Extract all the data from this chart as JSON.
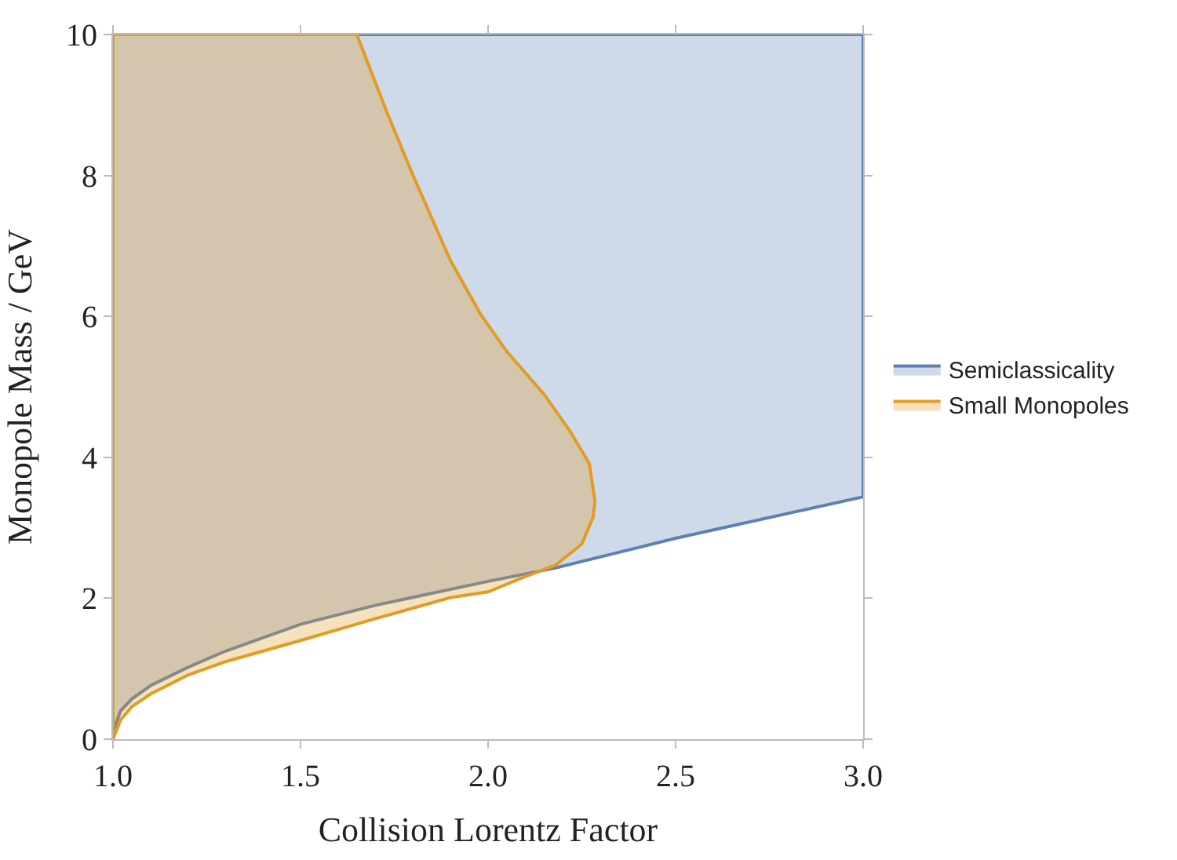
{
  "chart_data": {
    "type": "area",
    "xlabel": "Collision Lorentz Factor",
    "ylabel": "Monopole Mass / GeV",
    "xlim": [
      1.0,
      3.0
    ],
    "ylim": [
      0,
      10
    ],
    "xticks": [
      {
        "value": 1.0,
        "label": "1.0"
      },
      1.5,
      {
        "value": 2.0,
        "label": "2.0"
      },
      2.5,
      {
        "value": 3.0,
        "label": "3.0"
      }
    ],
    "yticks": [
      0,
      2,
      4,
      6,
      8,
      10
    ],
    "grid": false,
    "legend": "right",
    "series": [
      {
        "name": "Semiclassicality",
        "color": "#5e81b5",
        "x": [
          1.0,
          1.02,
          1.05,
          1.1,
          1.2,
          1.3,
          1.5,
          1.7,
          2.0,
          2.18,
          2.5,
          3.0,
          3.0,
          1.0,
          1.0
        ],
        "values": [
          0.1,
          0.4,
          0.57,
          0.76,
          1.02,
          1.25,
          1.63,
          1.9,
          2.24,
          2.43,
          2.85,
          3.44,
          10,
          10,
          0.1
        ]
      },
      {
        "name": "Small Monopoles",
        "color": "#e19c24",
        "x": [
          1.0,
          1.02,
          1.05,
          1.1,
          1.2,
          1.3,
          1.5,
          1.7,
          1.9,
          2.0,
          2.1,
          2.18,
          2.25,
          2.28,
          2.285,
          2.27,
          2.22,
          2.15,
          2.05,
          1.98,
          1.9,
          1.8,
          1.73,
          1.65,
          1.0,
          1.0
        ],
        "values": [
          0,
          0.27,
          0.46,
          0.64,
          0.91,
          1.1,
          1.4,
          1.71,
          2.01,
          2.09,
          2.31,
          2.47,
          2.77,
          3.15,
          3.38,
          3.91,
          4.36,
          4.89,
          5.5,
          6.03,
          6.79,
          8.0,
          8.9,
          10,
          10,
          0
        ]
      }
    ]
  }
}
